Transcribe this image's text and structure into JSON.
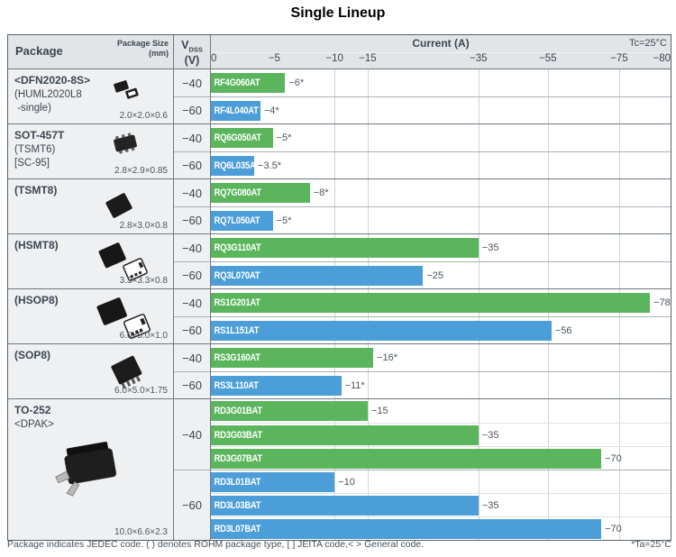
{
  "title": "Single Lineup",
  "header": {
    "package": "Package",
    "package_size": "Package Size",
    "package_size_unit": "(mm)",
    "vdss": {
      "symbol": "V",
      "subscript": "DSS",
      "unit": "(V)"
    },
    "current": "Current (A)",
    "temperature_condition": "Tc=25°C"
  },
  "axis": {
    "ticks": [
      {
        "label": "0",
        "pos": 0
      },
      {
        "label": "−5",
        "pos": 0.138
      },
      {
        "label": "−10",
        "pos": 0.269
      },
      {
        "label": "−15",
        "pos": 0.341
      },
      {
        "label": "−35",
        "pos": 0.582
      },
      {
        "label": "−55",
        "pos": 0.733
      },
      {
        "label": "−75",
        "pos": 0.888
      },
      {
        "label": "−80",
        "pos": 1
      }
    ],
    "gridline_positions": [
      0.269,
      0.341,
      0.582,
      0.733,
      0.888
    ],
    "scale_breakpoints": [
      [
        0,
        0
      ],
      [
        10,
        0.269
      ],
      [
        15,
        0.341
      ],
      [
        35,
        0.582
      ],
      [
        55,
        0.733
      ],
      [
        75,
        0.888
      ],
      [
        80,
        1
      ]
    ]
  },
  "colors": {
    "green": "#5ab55c",
    "blue": "#4c9ed9"
  },
  "rows": [
    {
      "key": "dfn2020-8s",
      "icon": "dfn",
      "package_lines": [
        {
          "text": "<DFN2020-8S>",
          "bold": true
        },
        {
          "text": "(HUML2020L8",
          "bold": false
        },
        {
          "text": " -single)",
          "bold": false
        }
      ],
      "size": "2.0×2.0×0.6",
      "groups": [
        {
          "vdss": "−40",
          "color": "green",
          "bars": [
            {
              "part": "RF4G060AT",
              "value": 6,
              "label": "−6*"
            }
          ]
        },
        {
          "vdss": "−60",
          "color": "blue",
          "bars": [
            {
              "part": "RF4L040AT",
              "value": 4,
              "label": "−4*"
            }
          ]
        }
      ]
    },
    {
      "key": "sot-457t",
      "icon": "sot457",
      "package_lines": [
        {
          "text": "SOT-457T",
          "bold": true
        },
        {
          "text": "(TSMT6)",
          "bold": false
        },
        {
          "text": "[SC-95]",
          "bold": false
        }
      ],
      "size": "2.8×2.9×0.85",
      "groups": [
        {
          "vdss": "−40",
          "color": "green",
          "bars": [
            {
              "part": "RQ6G050AT",
              "value": 5,
              "label": "−5*"
            }
          ]
        },
        {
          "vdss": "−60",
          "color": "blue",
          "bars": [
            {
              "part": "RQ6L035AT",
              "value": 3.5,
              "label": "−3.5*"
            }
          ]
        }
      ]
    },
    {
      "key": "tsmt8",
      "icon": "tsmt8",
      "package_lines": [
        {
          "text": "(TSMT8)",
          "bold": true
        }
      ],
      "size": "2.8×3.0×0.8",
      "groups": [
        {
          "vdss": "−40",
          "color": "green",
          "bars": [
            {
              "part": "RQ7G080AT",
              "value": 8,
              "label": "−8*"
            }
          ]
        },
        {
          "vdss": "−60",
          "color": "blue",
          "bars": [
            {
              "part": "RQ7L050AT",
              "value": 5,
              "label": "−5*"
            }
          ]
        }
      ]
    },
    {
      "key": "hsmt8",
      "icon": "hsmt8",
      "package_lines": [
        {
          "text": "(HSMT8)",
          "bold": true
        }
      ],
      "size": "3.3×3.3×0.8",
      "groups": [
        {
          "vdss": "−40",
          "color": "green",
          "bars": [
            {
              "part": "RQ3G110AT",
              "value": 35,
              "label": "−35"
            }
          ]
        },
        {
          "vdss": "−60",
          "color": "blue",
          "bars": [
            {
              "part": "RQ3L070AT",
              "value": 25,
              "label": "−25"
            }
          ]
        }
      ]
    },
    {
      "key": "hsop8",
      "icon": "hsop8",
      "package_lines": [
        {
          "text": "(HSOP8)",
          "bold": true
        }
      ],
      "size": "6.0×5.0×1.0",
      "groups": [
        {
          "vdss": "−40",
          "color": "green",
          "bars": [
            {
              "part": "RS1G201AT",
              "value": 78,
              "label": "−78"
            }
          ]
        },
        {
          "vdss": "−60",
          "color": "blue",
          "bars": [
            {
              "part": "RS1L151AT",
              "value": 56,
              "label": "−56"
            }
          ]
        }
      ]
    },
    {
      "key": "sop8",
      "icon": "sop8",
      "package_lines": [
        {
          "text": "(SOP8)",
          "bold": true
        }
      ],
      "size": "6.0×5.0×1.75",
      "groups": [
        {
          "vdss": "−40",
          "color": "green",
          "bars": [
            {
              "part": "RS3G160AT",
              "value": 16,
              "label": "−16*"
            }
          ]
        },
        {
          "vdss": "−60",
          "color": "blue",
          "bars": [
            {
              "part": "RS3L110AT",
              "value": 11,
              "label": "−11*"
            }
          ]
        }
      ]
    },
    {
      "key": "to-252",
      "icon": "to252",
      "package_lines": [
        {
          "text": "TO-252",
          "bold": true
        },
        {
          "text": "<DPAK>",
          "bold": false
        }
      ],
      "size": "10.0×6.6×2.3",
      "groups": [
        {
          "vdss": "−40",
          "color": "green",
          "bars": [
            {
              "part": "RD3G01BAT",
              "value": 15,
              "label": "−15"
            },
            {
              "part": "RD3G03BAT",
              "value": 35,
              "label": "−35"
            },
            {
              "part": "RD3G07BAT",
              "value": 70,
              "label": "−70"
            }
          ]
        },
        {
          "vdss": "−60",
          "color": "blue",
          "bars": [
            {
              "part": "RD3L01BAT",
              "value": 10,
              "label": "−10"
            },
            {
              "part": "RD3L03BAT",
              "value": 35,
              "label": "−35"
            },
            {
              "part": "RD3L07BAT",
              "value": 70,
              "label": "−70"
            }
          ]
        }
      ]
    }
  ],
  "footer": {
    "left": "Package indicates JEDEC code. ( ) denotes ROHM package type, [ ] JEITA code,< > General code.",
    "right": "*Ta=25°C"
  },
  "chart_data": {
    "type": "bar",
    "orientation": "horizontal",
    "title": "Single Lineup",
    "xlabel": "Current (A)",
    "x_ticks": [
      0,
      -5,
      -10,
      -15,
      -35,
      -55,
      -75,
      -80
    ],
    "xlim": [
      0,
      -80
    ],
    "axis_note": "non-linear compressed scale",
    "condition": "Tc=25°C",
    "star_condition": "*Ta=25°C",
    "bars": [
      {
        "package": "<DFN2020-8S> (HUML2020L8 -single)",
        "size_mm": "2.0×2.0×0.6",
        "vdss_v": -40,
        "part": "RF4G060AT",
        "current_a": -6,
        "star": true
      },
      {
        "package": "<DFN2020-8S> (HUML2020L8 -single)",
        "size_mm": "2.0×2.0×0.6",
        "vdss_v": -60,
        "part": "RF4L040AT",
        "current_a": -4,
        "star": true
      },
      {
        "package": "SOT-457T (TSMT6) [SC-95]",
        "size_mm": "2.8×2.9×0.85",
        "vdss_v": -40,
        "part": "RQ6G050AT",
        "current_a": -5,
        "star": true
      },
      {
        "package": "SOT-457T (TSMT6) [SC-95]",
        "size_mm": "2.8×2.9×0.85",
        "vdss_v": -60,
        "part": "RQ6L035AT",
        "current_a": -3.5,
        "star": true
      },
      {
        "package": "(TSMT8)",
        "size_mm": "2.8×3.0×0.8",
        "vdss_v": -40,
        "part": "RQ7G080AT",
        "current_a": -8,
        "star": true
      },
      {
        "package": "(TSMT8)",
        "size_mm": "2.8×3.0×0.8",
        "vdss_v": -60,
        "part": "RQ7L050AT",
        "current_a": -5,
        "star": true
      },
      {
        "package": "(HSMT8)",
        "size_mm": "3.3×3.3×0.8",
        "vdss_v": -40,
        "part": "RQ3G110AT",
        "current_a": -35,
        "star": false
      },
      {
        "package": "(HSMT8)",
        "size_mm": "3.3×3.3×0.8",
        "vdss_v": -60,
        "part": "RQ3L070AT",
        "current_a": -25,
        "star": false
      },
      {
        "package": "(HSOP8)",
        "size_mm": "6.0×5.0×1.0",
        "vdss_v": -40,
        "part": "RS1G201AT",
        "current_a": -78,
        "star": false
      },
      {
        "package": "(HSOP8)",
        "size_mm": "6.0×5.0×1.0",
        "vdss_v": -60,
        "part": "RS1L151AT",
        "current_a": -56,
        "star": false
      },
      {
        "package": "(SOP8)",
        "size_mm": "6.0×5.0×1.75",
        "vdss_v": -40,
        "part": "RS3G160AT",
        "current_a": -16,
        "star": true
      },
      {
        "package": "(SOP8)",
        "size_mm": "6.0×5.0×1.75",
        "vdss_v": -60,
        "part": "RS3L110AT",
        "current_a": -11,
        "star": true
      },
      {
        "package": "TO-252 <DPAK>",
        "size_mm": "10.0×6.6×2.3",
        "vdss_v": -40,
        "part": "RD3G01BAT",
        "current_a": -15,
        "star": false
      },
      {
        "package": "TO-252 <DPAK>",
        "size_mm": "10.0×6.6×2.3",
        "vdss_v": -40,
        "part": "RD3G03BAT",
        "current_a": -35,
        "star": false
      },
      {
        "package": "TO-252 <DPAK>",
        "size_mm": "10.0×6.6×2.3",
        "vdss_v": -40,
        "part": "RD3G07BAT",
        "current_a": -70,
        "star": false
      },
      {
        "package": "TO-252 <DPAK>",
        "size_mm": "10.0×6.6×2.3",
        "vdss_v": -60,
        "part": "RD3L01BAT",
        "current_a": -10,
        "star": false
      },
      {
        "package": "TO-252 <DPAK>",
        "size_mm": "10.0×6.6×2.3",
        "vdss_v": -60,
        "part": "RD3L03BAT",
        "current_a": -35,
        "star": false
      },
      {
        "package": "TO-252 <DPAK>",
        "size_mm": "10.0×6.6×2.3",
        "vdss_v": -60,
        "part": "RD3L07BAT",
        "current_a": -70,
        "star": false
      }
    ]
  }
}
